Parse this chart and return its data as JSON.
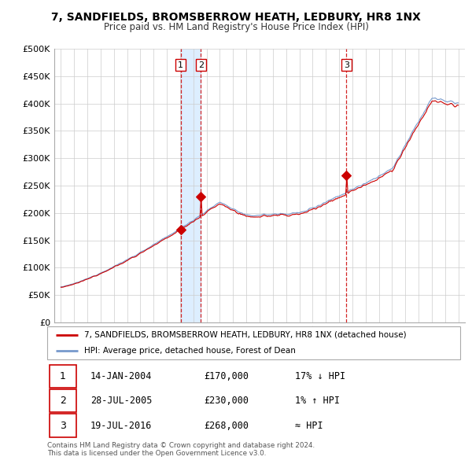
{
  "title": "7, SANDFIELDS, BROMSBERROW HEATH, LEDBURY, HR8 1NX",
  "subtitle": "Price paid vs. HM Land Registry's House Price Index (HPI)",
  "red_label": "7, SANDFIELDS, BROMSBERROW HEATH, LEDBURY, HR8 1NX (detached house)",
  "blue_label": "HPI: Average price, detached house, Forest of Dean",
  "transactions": [
    {
      "num": 1,
      "date": "14-JAN-2004",
      "price": "£170,000",
      "hpi": "17% ↓ HPI",
      "year": 2004.04,
      "price_val": 170000
    },
    {
      "num": 2,
      "date": "28-JUL-2005",
      "price": "£230,000",
      "hpi": "1% ↑ HPI",
      "year": 2005.57,
      "price_val": 230000
    },
    {
      "num": 3,
      "date": "19-JUL-2016",
      "price": "£268,000",
      "hpi": "≈ HPI",
      "year": 2016.55,
      "price_val": 268000
    }
  ],
  "ylim": [
    0,
    500000
  ],
  "yticks": [
    0,
    50000,
    100000,
    150000,
    200000,
    250000,
    300000,
    350000,
    400000,
    450000,
    500000
  ],
  "ytick_labels": [
    "£0",
    "£50K",
    "£100K",
    "£150K",
    "£200K",
    "£250K",
    "£300K",
    "£350K",
    "£400K",
    "£450K",
    "£500K"
  ],
  "xlim_start": 1994.5,
  "xlim_end": 2025.5,
  "xticks": [
    1995,
    1996,
    1997,
    1998,
    1999,
    2000,
    2001,
    2002,
    2003,
    2004,
    2005,
    2006,
    2007,
    2008,
    2009,
    2010,
    2011,
    2012,
    2013,
    2014,
    2015,
    2016,
    2017,
    2018,
    2019,
    2020,
    2021,
    2022,
    2023,
    2024,
    2025
  ],
  "red_color": "#cc0000",
  "blue_color": "#7799cc",
  "shade_color": "#ddeeff",
  "vline_color": "#cc0000",
  "footnote": "Contains HM Land Registry data © Crown copyright and database right 2024.\nThis data is licensed under the Open Government Licence v3.0.",
  "background_color": "#ffffff",
  "plot_bg_color": "#ffffff",
  "grid_color": "#cccccc"
}
